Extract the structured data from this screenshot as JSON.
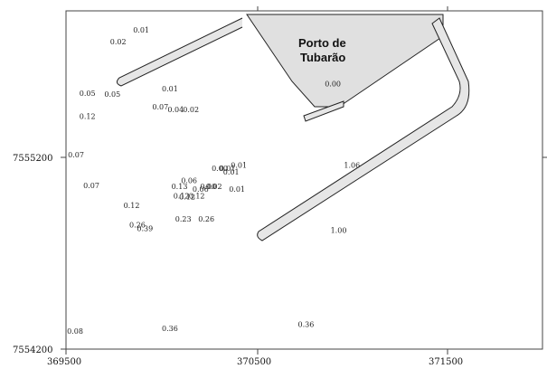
{
  "map": {
    "port_label": [
      "Porto de",
      "Tubarão"
    ],
    "x_ticks": [
      "369500",
      "370500",
      "371500"
    ],
    "y_ticks": [
      "7555200",
      "7554200"
    ],
    "colors": {
      "land": "#e0e0e0",
      "outline": "#222222",
      "frame": "#444444"
    },
    "samples": [
      {
        "label": "0.01",
        "easting": 369850,
        "northing": 7555850
      },
      {
        "label": "0.02",
        "easting": 369730,
        "northing": 7555790
      },
      {
        "label": "0.01",
        "easting": 370000,
        "northing": 7555545
      },
      {
        "label": "0.00",
        "easting": 370850,
        "northing": 7555570
      },
      {
        "label": "0.05",
        "easting": 369570,
        "northing": 7555520
      },
      {
        "label": "0.05",
        "easting": 369700,
        "northing": 7555515
      },
      {
        "label": "0.07",
        "easting": 369950,
        "northing": 7555450
      },
      {
        "label": "0.04",
        "easting": 370030,
        "northing": 7555435
      },
      {
        "label": "0.02",
        "easting": 370110,
        "northing": 7555435
      },
      {
        "label": "0.12",
        "easting": 369570,
        "northing": 7555400
      },
      {
        "label": "0.07",
        "easting": 369510,
        "northing": 7555200
      },
      {
        "label": "0.00",
        "easting": 370260,
        "northing": 7555130
      },
      {
        "label": "0.01",
        "easting": 370300,
        "northing": 7555130
      },
      {
        "label": "0.01",
        "easting": 370360,
        "northing": 7555145
      },
      {
        "label": "0.01",
        "easting": 370320,
        "northing": 7555110
      },
      {
        "label": "1.06",
        "easting": 370950,
        "northing": 7555145
      },
      {
        "label": "0.06",
        "easting": 370100,
        "northing": 7555065
      },
      {
        "label": "0.07",
        "easting": 369590,
        "northing": 7555040
      },
      {
        "label": "0.13",
        "easting": 370050,
        "northing": 7555035
      },
      {
        "label": "0.00",
        "easting": 370200,
        "northing": 7555035
      },
      {
        "label": "0.02",
        "easting": 370230,
        "northing": 7555035
      },
      {
        "label": "0.06",
        "easting": 370160,
        "northing": 7555020
      },
      {
        "label": "0.01",
        "easting": 370350,
        "northing": 7555020
      },
      {
        "label": "0.12",
        "easting": 370060,
        "northing": 7554985
      },
      {
        "label": "0.12",
        "easting": 370090,
        "northing": 7554980
      },
      {
        "label": "0.12",
        "easting": 370140,
        "northing": 7554985
      },
      {
        "label": "0.12",
        "easting": 369800,
        "northing": 7554935
      },
      {
        "label": "0.23",
        "easting": 370070,
        "northing": 7554865
      },
      {
        "label": "0.26",
        "easting": 370190,
        "northing": 7554865
      },
      {
        "label": "0.26",
        "easting": 369830,
        "northing": 7554835
      },
      {
        "label": "0.39",
        "easting": 369870,
        "northing": 7554815
      },
      {
        "label": "1.00",
        "easting": 370880,
        "northing": 7554805
      },
      {
        "label": "0.08",
        "easting": 369505,
        "northing": 7554280
      },
      {
        "label": "0.36",
        "easting": 370000,
        "northing": 7554295
      },
      {
        "label": "0.36",
        "easting": 370710,
        "northing": 7554315
      }
    ]
  }
}
